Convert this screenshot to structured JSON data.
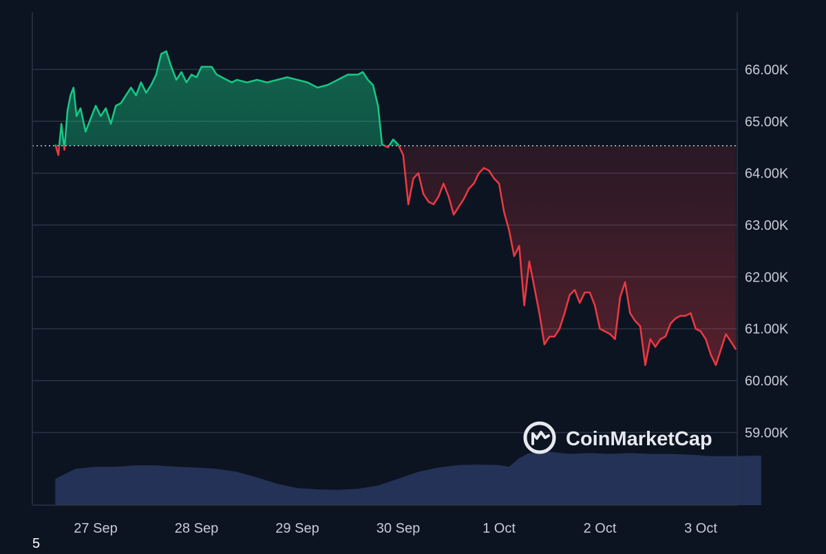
{
  "chart_data": {
    "type": "line",
    "title": "",
    "xlabel": "",
    "ylabel": "",
    "x_tick_labels": [
      "27 Sep",
      "28 Sep",
      "29 Sep",
      "30 Sep",
      "1 Oct",
      "2 Oct",
      "3 Oct"
    ],
    "y_ticks": [
      59000,
      60000,
      61000,
      62000,
      63000,
      64000,
      65000,
      66000
    ],
    "y_tick_labels": [
      "59.00K",
      "60.00K",
      "61.00K",
      "62.00K",
      "63.00K",
      "64.00K",
      "65.00K",
      "66.00K"
    ],
    "ylim": [
      57600,
      67100
    ],
    "xlim_days": [
      -0.4,
      6.6
    ],
    "reference_price": 64530,
    "grid": "horizontal",
    "colors": {
      "above": "#16c784",
      "below": "#ea3943",
      "volume": "#2a3760",
      "grid": "#2b3445",
      "reference_line": "#c7cbd6"
    },
    "price_series": {
      "name": "",
      "points": [
        [
          -0.4,
          64550
        ],
        [
          -0.37,
          64350
        ],
        [
          -0.34,
          64950
        ],
        [
          -0.31,
          64450
        ],
        [
          -0.28,
          65200
        ],
        [
          -0.25,
          65500
        ],
        [
          -0.22,
          65650
        ],
        [
          -0.19,
          65100
        ],
        [
          -0.15,
          65250
        ],
        [
          -0.1,
          64800
        ],
        [
          -0.05,
          65050
        ],
        [
          0.0,
          65300
        ],
        [
          0.05,
          65100
        ],
        [
          0.1,
          65250
        ],
        [
          0.15,
          64950
        ],
        [
          0.2,
          65300
        ],
        [
          0.25,
          65350
        ],
        [
          0.3,
          65500
        ],
        [
          0.35,
          65650
        ],
        [
          0.4,
          65500
        ],
        [
          0.45,
          65750
        ],
        [
          0.5,
          65550
        ],
        [
          0.55,
          65700
        ],
        [
          0.6,
          65900
        ],
        [
          0.65,
          66300
        ],
        [
          0.7,
          66350
        ],
        [
          0.75,
          66050
        ],
        [
          0.8,
          65800
        ],
        [
          0.85,
          65950
        ],
        [
          0.9,
          65750
        ],
        [
          0.95,
          65900
        ],
        [
          1.0,
          65850
        ],
        [
          1.05,
          66050
        ],
        [
          1.1,
          66050
        ],
        [
          1.15,
          66050
        ],
        [
          1.2,
          65900
        ],
        [
          1.25,
          65850
        ],
        [
          1.3,
          65800
        ],
        [
          1.35,
          65750
        ],
        [
          1.4,
          65800
        ],
        [
          1.5,
          65750
        ],
        [
          1.6,
          65800
        ],
        [
          1.7,
          65750
        ],
        [
          1.8,
          65800
        ],
        [
          1.9,
          65850
        ],
        [
          2.0,
          65800
        ],
        [
          2.1,
          65750
        ],
        [
          2.2,
          65650
        ],
        [
          2.3,
          65700
        ],
        [
          2.4,
          65800
        ],
        [
          2.5,
          65900
        ],
        [
          2.6,
          65900
        ],
        [
          2.65,
          65950
        ],
        [
          2.7,
          65800
        ],
        [
          2.75,
          65700
        ],
        [
          2.8,
          65300
        ],
        [
          2.84,
          64550
        ],
        [
          2.9,
          64500
        ],
        [
          2.95,
          64650
        ],
        [
          3.0,
          64550
        ],
        [
          3.05,
          64350
        ],
        [
          3.1,
          63400
        ],
        [
          3.15,
          63900
        ],
        [
          3.2,
          64000
        ],
        [
          3.25,
          63600
        ],
        [
          3.3,
          63450
        ],
        [
          3.35,
          63400
        ],
        [
          3.4,
          63550
        ],
        [
          3.45,
          63800
        ],
        [
          3.5,
          63550
        ],
        [
          3.55,
          63200
        ],
        [
          3.6,
          63350
        ],
        [
          3.65,
          63500
        ],
        [
          3.7,
          63700
        ],
        [
          3.75,
          63800
        ],
        [
          3.8,
          64000
        ],
        [
          3.85,
          64100
        ],
        [
          3.9,
          64050
        ],
        [
          3.95,
          63900
        ],
        [
          4.0,
          63800
        ],
        [
          4.05,
          63250
        ],
        [
          4.1,
          62900
        ],
        [
          4.15,
          62400
        ],
        [
          4.2,
          62600
        ],
        [
          4.25,
          61450
        ],
        [
          4.3,
          62300
        ],
        [
          4.35,
          61800
        ],
        [
          4.4,
          61300
        ],
        [
          4.45,
          60700
        ],
        [
          4.5,
          60850
        ],
        [
          4.55,
          60850
        ],
        [
          4.6,
          61000
        ],
        [
          4.65,
          61300
        ],
        [
          4.7,
          61650
        ],
        [
          4.75,
          61750
        ],
        [
          4.8,
          61500
        ],
        [
          4.85,
          61700
        ],
        [
          4.9,
          61700
        ],
        [
          4.95,
          61450
        ],
        [
          5.0,
          61000
        ],
        [
          5.05,
          60950
        ],
        [
          5.1,
          60900
        ],
        [
          5.15,
          60800
        ],
        [
          5.2,
          61600
        ],
        [
          5.25,
          61900
        ],
        [
          5.3,
          61300
        ],
        [
          5.35,
          61150
        ],
        [
          5.4,
          61050
        ],
        [
          5.45,
          60300
        ],
        [
          5.5,
          60800
        ],
        [
          5.55,
          60650
        ],
        [
          5.6,
          60800
        ],
        [
          5.65,
          60850
        ],
        [
          5.7,
          61100
        ],
        [
          5.75,
          61200
        ],
        [
          5.8,
          61250
        ],
        [
          5.85,
          61250
        ],
        [
          5.9,
          61300
        ],
        [
          5.95,
          61000
        ],
        [
          6.0,
          60950
        ],
        [
          6.05,
          60800
        ],
        [
          6.1,
          60500
        ],
        [
          6.15,
          60300
        ],
        [
          6.2,
          60600
        ],
        [
          6.25,
          60900
        ],
        [
          6.3,
          60750
        ],
        [
          6.35,
          60600
        ]
      ]
    },
    "volume_series": {
      "name": "",
      "points": [
        [
          -0.4,
          0.62
        ],
        [
          -0.2,
          0.85
        ],
        [
          0.0,
          0.9
        ],
        [
          0.2,
          0.9
        ],
        [
          0.4,
          0.93
        ],
        [
          0.6,
          0.93
        ],
        [
          0.8,
          0.9
        ],
        [
          1.0,
          0.88
        ],
        [
          1.2,
          0.85
        ],
        [
          1.4,
          0.78
        ],
        [
          1.6,
          0.65
        ],
        [
          1.8,
          0.5
        ],
        [
          2.0,
          0.4
        ],
        [
          2.2,
          0.37
        ],
        [
          2.4,
          0.36
        ],
        [
          2.6,
          0.38
        ],
        [
          2.8,
          0.46
        ],
        [
          3.0,
          0.62
        ],
        [
          3.2,
          0.78
        ],
        [
          3.4,
          0.88
        ],
        [
          3.6,
          0.94
        ],
        [
          3.8,
          0.95
        ],
        [
          4.0,
          0.94
        ],
        [
          4.1,
          0.9
        ],
        [
          4.2,
          1.1
        ],
        [
          4.3,
          1.22
        ],
        [
          4.5,
          1.25
        ],
        [
          4.7,
          1.2
        ],
        [
          4.9,
          1.22
        ],
        [
          5.1,
          1.2
        ],
        [
          5.3,
          1.22
        ],
        [
          5.5,
          1.2
        ],
        [
          5.7,
          1.2
        ],
        [
          5.9,
          1.18
        ],
        [
          6.1,
          1.15
        ],
        [
          6.3,
          1.15
        ],
        [
          6.6,
          1.16
        ]
      ]
    }
  },
  "watermark": {
    "brand": "CoinMarketCap"
  },
  "corner_label": "5"
}
